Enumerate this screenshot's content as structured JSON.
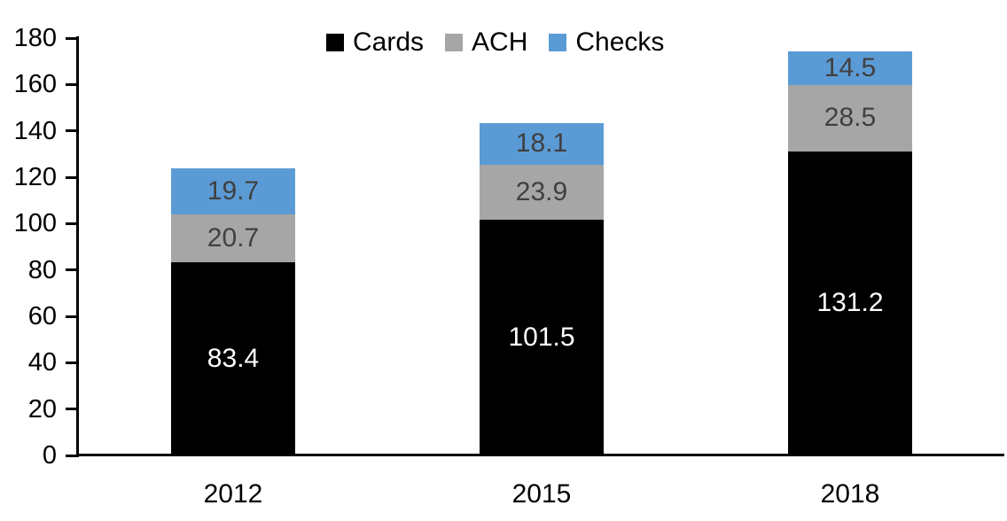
{
  "chart_data": {
    "type": "bar",
    "stacked": true,
    "title": "",
    "xlabel": "",
    "ylabel": "",
    "categories": [
      "2012",
      "2015",
      "2018"
    ],
    "series": [
      {
        "name": "Cards",
        "color": "#000000",
        "label_color": "#ffffff",
        "values": [
          83.4,
          101.5,
          131.2
        ]
      },
      {
        "name": "ACH",
        "color": "#a6a6a6",
        "label_color": "#404040",
        "values": [
          20.7,
          23.9,
          28.5
        ]
      },
      {
        "name": "Checks",
        "color": "#5b9bd5",
        "label_color": "#404040",
        "values": [
          19.7,
          18.1,
          14.5
        ]
      }
    ],
    "ylim": [
      0,
      180
    ],
    "ytick_step": 20,
    "yticks": [
      0,
      20,
      40,
      60,
      80,
      100,
      120,
      140,
      160,
      180
    ],
    "grid": false,
    "legend_position": "top",
    "axis_color": "#000000",
    "background_color": "#ffffff"
  }
}
